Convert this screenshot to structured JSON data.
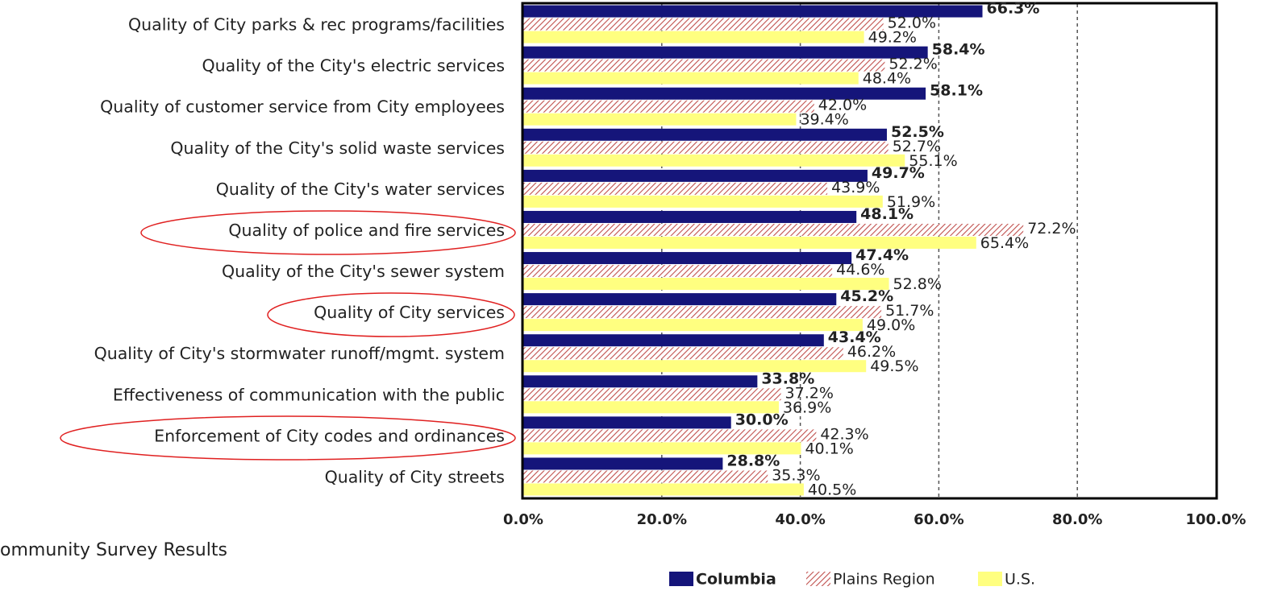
{
  "chart_data": {
    "type": "bar",
    "orientation": "horizontal",
    "subtitle": "ommunity Survey Results",
    "categories": [
      "Quality of City parks & rec programs/facilities",
      "Quality of the City's electric services",
      "Quality of customer service from City employees",
      "Quality of the City's solid waste services",
      "Quality of the City's water services",
      "Quality of police and fire services",
      "Quality of the City's sewer system",
      "Quality of City services",
      "Quality of City's stormwater runoff/mgmt. system",
      "Effectiveness of communication with the public",
      "Enforcement of City codes and ordinances",
      "Quality of City streets"
    ],
    "series": [
      {
        "name": "Columbia",
        "color": "#15157a",
        "values": [
          66.3,
          58.4,
          58.1,
          52.5,
          49.7,
          48.1,
          47.4,
          45.2,
          43.4,
          33.8,
          30.0,
          28.8
        ],
        "value_labels": [
          "66.3%",
          "58.4%",
          "58.1%",
          "52.5%",
          "49.7%",
          "48.1%",
          "47.4%",
          "45.2%",
          "43.4%",
          "33.8%",
          "30.0%",
          "28.8%"
        ]
      },
      {
        "name": "Plains Region",
        "color": "#c0504d",
        "values": [
          52.0,
          52.2,
          42.0,
          52.7,
          43.9,
          72.2,
          44.6,
          51.7,
          46.2,
          37.2,
          42.3,
          35.3
        ],
        "value_labels": [
          "52.0%",
          "52.2%",
          "42.0%",
          "52.7%",
          "43.9%",
          "72.2%",
          "44.6%",
          "51.7%",
          "46.2%",
          "37.2%",
          "42.3%",
          "35.3%"
        ]
      },
      {
        "name": "U.S.",
        "color": "#ffff80",
        "values": [
          49.2,
          48.4,
          39.4,
          55.1,
          51.9,
          65.4,
          52.8,
          49.0,
          49.5,
          36.9,
          40.1,
          40.5
        ],
        "value_labels": [
          "49.2%",
          "48.4%",
          "39.4%",
          "55.1%",
          "51.9%",
          "65.4%",
          "52.8%",
          "49.0%",
          "49.5%",
          "36.9%",
          "40.1%",
          "40.5%"
        ]
      }
    ],
    "xlim": [
      0,
      100
    ],
    "xticks": [
      {
        "value": 0,
        "label": "0.0%"
      },
      {
        "value": 20,
        "label": "20.0%"
      },
      {
        "value": 40,
        "label": "40.0%"
      },
      {
        "value": 60,
        "label": "60.0%"
      },
      {
        "value": 80,
        "label": "80.0%"
      },
      {
        "value": 100,
        "label": "100.0%"
      }
    ],
    "grid": true,
    "legend": "bottom"
  }
}
